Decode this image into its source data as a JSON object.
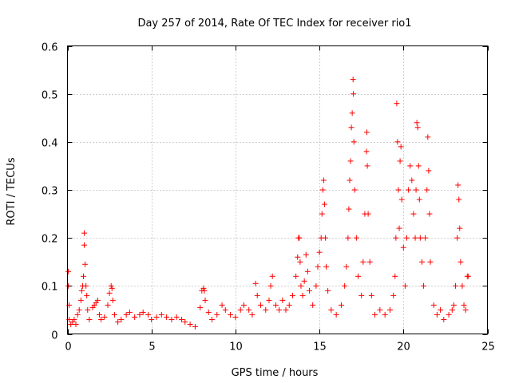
{
  "chart_data": {
    "type": "scatter",
    "title": "Day 257 of 2014, Rate Of TEC Index for receiver rio1",
    "xlabel": "GPS time / hours",
    "ylabel": "ROTI / TECUs",
    "xlim": [
      0,
      25
    ],
    "ylim": [
      0,
      0.6
    ],
    "xticks": [
      0,
      5,
      10,
      15,
      20,
      25
    ],
    "xtick_labels": [
      "0",
      "5",
      "10",
      "15",
      "20",
      "25"
    ],
    "yticks": [
      0,
      0.1,
      0.2,
      0.3,
      0.4,
      0.5,
      0.6
    ],
    "ytick_labels": [
      "0",
      "0.1",
      "0.2",
      "0.3",
      "0.4",
      "0.5",
      "0.6"
    ],
    "grid": true,
    "marker": "+",
    "color": "#ff0000",
    "series": [
      {
        "name": "rio1",
        "points": [
          [
            0.05,
            0.13
          ],
          [
            0.05,
            0.1
          ],
          [
            0.1,
            0.06
          ],
          [
            0.1,
            0.03
          ],
          [
            0.2,
            0.02
          ],
          [
            0.3,
            0.025
          ],
          [
            0.4,
            0.03
          ],
          [
            0.5,
            0.02
          ],
          [
            0.6,
            0.04
          ],
          [
            0.7,
            0.05
          ],
          [
            0.8,
            0.07
          ],
          [
            0.85,
            0.09
          ],
          [
            0.9,
            0.1
          ],
          [
            0.95,
            0.12
          ],
          [
            1.0,
            0.21
          ],
          [
            1.0,
            0.185
          ],
          [
            1.05,
            0.145
          ],
          [
            1.1,
            0.1
          ],
          [
            1.15,
            0.08
          ],
          [
            1.2,
            0.05
          ],
          [
            1.3,
            0.03
          ],
          [
            1.5,
            0.055
          ],
          [
            1.6,
            0.06
          ],
          [
            1.7,
            0.065
          ],
          [
            1.8,
            0.07
          ],
          [
            1.9,
            0.04
          ],
          [
            2.0,
            0.03
          ],
          [
            2.2,
            0.035
          ],
          [
            2.4,
            0.06
          ],
          [
            2.5,
            0.085
          ],
          [
            2.6,
            0.1
          ],
          [
            2.65,
            0.095
          ],
          [
            2.7,
            0.07
          ],
          [
            2.8,
            0.04
          ],
          [
            3.0,
            0.025
          ],
          [
            3.2,
            0.03
          ],
          [
            3.5,
            0.04
          ],
          [
            3.7,
            0.045
          ],
          [
            4.0,
            0.035
          ],
          [
            4.3,
            0.04
          ],
          [
            4.5,
            0.045
          ],
          [
            4.8,
            0.04
          ],
          [
            5.0,
            0.03
          ],
          [
            5.3,
            0.035
          ],
          [
            5.6,
            0.04
          ],
          [
            5.9,
            0.035
          ],
          [
            6.2,
            0.03
          ],
          [
            6.5,
            0.035
          ],
          [
            6.8,
            0.03
          ],
          [
            7.0,
            0.025
          ],
          [
            7.3,
            0.02
          ],
          [
            7.6,
            0.015
          ],
          [
            7.9,
            0.055
          ],
          [
            8.0,
            0.09
          ],
          [
            8.1,
            0.095
          ],
          [
            8.15,
            0.09
          ],
          [
            8.2,
            0.07
          ],
          [
            8.4,
            0.045
          ],
          [
            8.6,
            0.03
          ],
          [
            8.9,
            0.04
          ],
          [
            9.2,
            0.06
          ],
          [
            9.4,
            0.05
          ],
          [
            9.7,
            0.04
          ],
          [
            10.0,
            0.035
          ],
          [
            10.3,
            0.05
          ],
          [
            10.5,
            0.06
          ],
          [
            10.8,
            0.05
          ],
          [
            11.0,
            0.04
          ],
          [
            11.2,
            0.105
          ],
          [
            11.3,
            0.08
          ],
          [
            11.5,
            0.06
          ],
          [
            11.8,
            0.05
          ],
          [
            12.0,
            0.07
          ],
          [
            12.1,
            0.1
          ],
          [
            12.2,
            0.12
          ],
          [
            12.4,
            0.06
          ],
          [
            12.6,
            0.05
          ],
          [
            12.8,
            0.07
          ],
          [
            13.0,
            0.05
          ],
          [
            13.2,
            0.06
          ],
          [
            13.4,
            0.08
          ],
          [
            13.6,
            0.12
          ],
          [
            13.7,
            0.16
          ],
          [
            13.75,
            0.2
          ],
          [
            13.8,
            0.2
          ],
          [
            13.85,
            0.15
          ],
          [
            13.9,
            0.1
          ],
          [
            14.0,
            0.08
          ],
          [
            14.1,
            0.11
          ],
          [
            14.2,
            0.165
          ],
          [
            14.3,
            0.13
          ],
          [
            14.4,
            0.09
          ],
          [
            14.6,
            0.06
          ],
          [
            14.8,
            0.1
          ],
          [
            14.9,
            0.14
          ],
          [
            15.0,
            0.17
          ],
          [
            15.1,
            0.2
          ],
          [
            15.15,
            0.25
          ],
          [
            15.2,
            0.3
          ],
          [
            15.25,
            0.32
          ],
          [
            15.3,
            0.27
          ],
          [
            15.35,
            0.2
          ],
          [
            15.4,
            0.14
          ],
          [
            15.5,
            0.09
          ],
          [
            15.7,
            0.05
          ],
          [
            16.0,
            0.04
          ],
          [
            16.3,
            0.06
          ],
          [
            16.5,
            0.1
          ],
          [
            16.6,
            0.14
          ],
          [
            16.7,
            0.2
          ],
          [
            16.75,
            0.26
          ],
          [
            16.8,
            0.32
          ],
          [
            16.85,
            0.36
          ],
          [
            16.9,
            0.43
          ],
          [
            16.95,
            0.46
          ],
          [
            17.0,
            0.53
          ],
          [
            17.02,
            0.5
          ],
          [
            17.05,
            0.4
          ],
          [
            17.1,
            0.3
          ],
          [
            17.2,
            0.2
          ],
          [
            17.3,
            0.12
          ],
          [
            17.5,
            0.08
          ],
          [
            17.6,
            0.15
          ],
          [
            17.7,
            0.25
          ],
          [
            17.8,
            0.38
          ],
          [
            17.82,
            0.42
          ],
          [
            17.85,
            0.35
          ],
          [
            17.9,
            0.25
          ],
          [
            18.0,
            0.15
          ],
          [
            18.1,
            0.08
          ],
          [
            18.3,
            0.04
          ],
          [
            18.6,
            0.05
          ],
          [
            18.9,
            0.04
          ],
          [
            19.2,
            0.05
          ],
          [
            19.4,
            0.08
          ],
          [
            19.5,
            0.12
          ],
          [
            19.55,
            0.2
          ],
          [
            19.6,
            0.48
          ],
          [
            19.65,
            0.4
          ],
          [
            19.7,
            0.3
          ],
          [
            19.75,
            0.22
          ],
          [
            19.8,
            0.36
          ],
          [
            19.85,
            0.39
          ],
          [
            19.9,
            0.28
          ],
          [
            20.0,
            0.18
          ],
          [
            20.1,
            0.1
          ],
          [
            20.2,
            0.2
          ],
          [
            20.3,
            0.3
          ],
          [
            20.4,
            0.35
          ],
          [
            20.5,
            0.32
          ],
          [
            20.6,
            0.25
          ],
          [
            20.7,
            0.2
          ],
          [
            20.75,
            0.3
          ],
          [
            20.8,
            0.44
          ],
          [
            20.85,
            0.43
          ],
          [
            20.9,
            0.35
          ],
          [
            20.95,
            0.28
          ],
          [
            21.0,
            0.2
          ],
          [
            21.1,
            0.15
          ],
          [
            21.2,
            0.1
          ],
          [
            21.3,
            0.2
          ],
          [
            21.4,
            0.3
          ],
          [
            21.45,
            0.41
          ],
          [
            21.5,
            0.34
          ],
          [
            21.55,
            0.25
          ],
          [
            21.6,
            0.15
          ],
          [
            21.8,
            0.06
          ],
          [
            22.0,
            0.04
          ],
          [
            22.2,
            0.05
          ],
          [
            22.4,
            0.03
          ],
          [
            22.7,
            0.04
          ],
          [
            22.9,
            0.05
          ],
          [
            23.0,
            0.06
          ],
          [
            23.1,
            0.1
          ],
          [
            23.2,
            0.2
          ],
          [
            23.25,
            0.31
          ],
          [
            23.3,
            0.28
          ],
          [
            23.35,
            0.22
          ],
          [
            23.4,
            0.15
          ],
          [
            23.5,
            0.1
          ],
          [
            23.6,
            0.06
          ],
          [
            23.7,
            0.05
          ],
          [
            23.8,
            0.12
          ],
          [
            23.85,
            0.12
          ]
        ]
      }
    ]
  }
}
